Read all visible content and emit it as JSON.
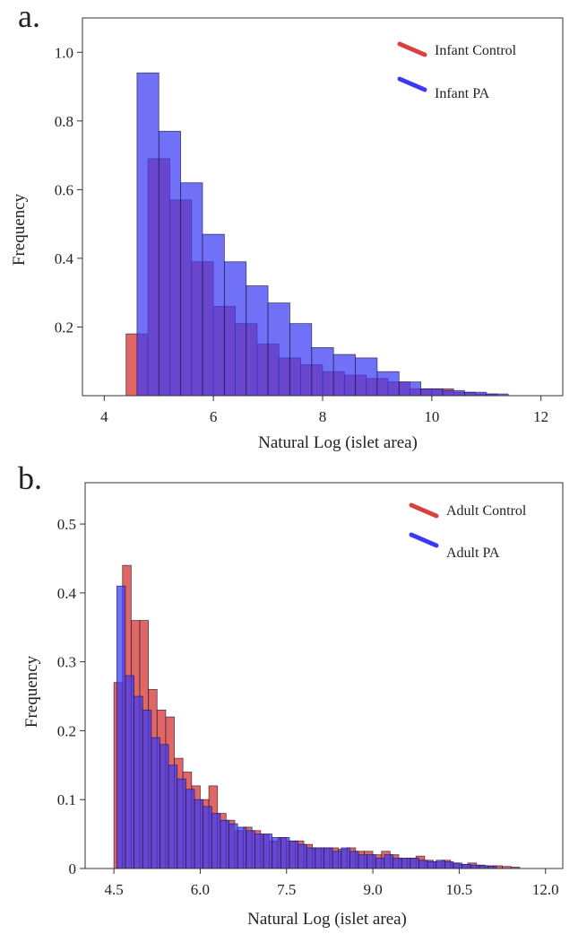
{
  "chart_data": [
    {
      "panel_label": "a.",
      "type": "bar",
      "xlabel": "Natural Log (islet area)",
      "ylabel": "Frequency",
      "xlim": [
        3.6,
        12.4
      ],
      "ylim": [
        0,
        1.1
      ],
      "xticks": [
        "4",
        "6",
        "8",
        "10",
        "12"
      ],
      "xtick_values": [
        4,
        6,
        8,
        10,
        12
      ],
      "yticks": [
        "0.2",
        "0.4",
        "0.6",
        "0.8",
        "1.0"
      ],
      "ytick_values": [
        0.2,
        0.4,
        0.6,
        0.8,
        1.0
      ],
      "bin_width": 0.4,
      "legend_position": "top-right",
      "series": [
        {
          "name": "Infant Control",
          "color": "#d94040",
          "bin_starts": [
            4.4,
            4.8,
            5.2,
            5.6,
            6.0,
            6.4,
            6.8,
            7.2,
            7.6,
            8.0,
            8.4,
            8.8,
            9.2,
            9.6,
            10.0,
            10.4,
            10.8
          ],
          "values": [
            0.18,
            0.69,
            0.57,
            0.39,
            0.26,
            0.21,
            0.15,
            0.11,
            0.09,
            0.07,
            0.06,
            0.05,
            0.04,
            0.02,
            0.02,
            0.01,
            0.005
          ]
        },
        {
          "name": "Infant PA",
          "color": "#3a3af5",
          "bin_starts": [
            4.6,
            5.0,
            5.4,
            5.8,
            6.2,
            6.6,
            7.0,
            7.4,
            7.8,
            8.2,
            8.6,
            9.0,
            9.4,
            9.8,
            10.2,
            10.6,
            11.0
          ],
          "values": [
            0.94,
            0.77,
            0.62,
            0.47,
            0.39,
            0.32,
            0.27,
            0.21,
            0.14,
            0.12,
            0.11,
            0.07,
            0.04,
            0.02,
            0.015,
            0.01,
            0.005
          ]
        }
      ]
    },
    {
      "panel_label": "b.",
      "type": "bar",
      "xlabel": "Natural Log (islet area)",
      "ylabel": "Frequency",
      "xlim": [
        4.0,
        12.3
      ],
      "ylim": [
        0,
        0.56
      ],
      "xticks": [
        "4.5",
        "6.0",
        "7.5",
        "9.0",
        "10.5",
        "12.0"
      ],
      "xtick_values": [
        4.5,
        6.0,
        7.5,
        9.0,
        10.5,
        12.0
      ],
      "yticks": [
        "0",
        "0.1",
        "0.2",
        "0.3",
        "0.4",
        "0.5"
      ],
      "ytick_values": [
        0,
        0.1,
        0.2,
        0.3,
        0.4,
        0.5
      ],
      "bin_width": 0.15,
      "legend_position": "top-right",
      "series": [
        {
          "name": "Adult Control",
          "color": "#d94040",
          "bin_starts": [
            4.5,
            4.65,
            4.8,
            4.95,
            5.1,
            5.25,
            5.4,
            5.55,
            5.7,
            5.85,
            6.0,
            6.15,
            6.3,
            6.45,
            6.6,
            6.75,
            6.9,
            7.05,
            7.2,
            7.35,
            7.5,
            7.65,
            7.8,
            7.95,
            8.1,
            8.25,
            8.4,
            8.55,
            8.7,
            8.85,
            9.0,
            9.15,
            9.3,
            9.45,
            9.6,
            9.75,
            9.9,
            10.05,
            10.2,
            10.35,
            10.5,
            10.65,
            10.8,
            10.95,
            11.1,
            11.25,
            11.4
          ],
          "values": [
            0.27,
            0.44,
            0.36,
            0.36,
            0.26,
            0.23,
            0.22,
            0.16,
            0.14,
            0.12,
            0.1,
            0.12,
            0.08,
            0.07,
            0.055,
            0.06,
            0.055,
            0.05,
            0.04,
            0.045,
            0.04,
            0.04,
            0.035,
            0.03,
            0.03,
            0.03,
            0.028,
            0.03,
            0.025,
            0.025,
            0.02,
            0.025,
            0.02,
            0.015,
            0.015,
            0.018,
            0.012,
            0.01,
            0.012,
            0.008,
            0.006,
            0.008,
            0.005,
            0.004,
            0.004,
            0.003,
            0.002
          ]
        },
        {
          "name": "Adult PA",
          "color": "#3a3af5",
          "bin_starts": [
            4.55,
            4.7,
            4.85,
            5.0,
            5.15,
            5.3,
            5.45,
            5.6,
            5.75,
            5.9,
            6.05,
            6.2,
            6.35,
            6.5,
            6.65,
            6.8,
            6.95,
            7.1,
            7.25,
            7.4,
            7.55,
            7.7,
            7.85,
            8.0,
            8.15,
            8.3,
            8.45,
            8.6,
            8.75,
            8.9,
            9.05,
            9.2,
            9.35,
            9.5,
            9.65,
            9.8,
            9.95,
            10.1,
            10.25,
            10.4,
            10.55,
            10.7,
            10.85,
            11.0
          ],
          "values": [
            0.41,
            0.28,
            0.25,
            0.23,
            0.19,
            0.18,
            0.15,
            0.13,
            0.115,
            0.1,
            0.09,
            0.08,
            0.07,
            0.065,
            0.06,
            0.055,
            0.05,
            0.05,
            0.045,
            0.045,
            0.04,
            0.035,
            0.03,
            0.03,
            0.03,
            0.025,
            0.03,
            0.025,
            0.02,
            0.02,
            0.015,
            0.02,
            0.015,
            0.015,
            0.015,
            0.012,
            0.01,
            0.012,
            0.01,
            0.008,
            0.006,
            0.005,
            0.004,
            0.003
          ]
        }
      ]
    }
  ]
}
